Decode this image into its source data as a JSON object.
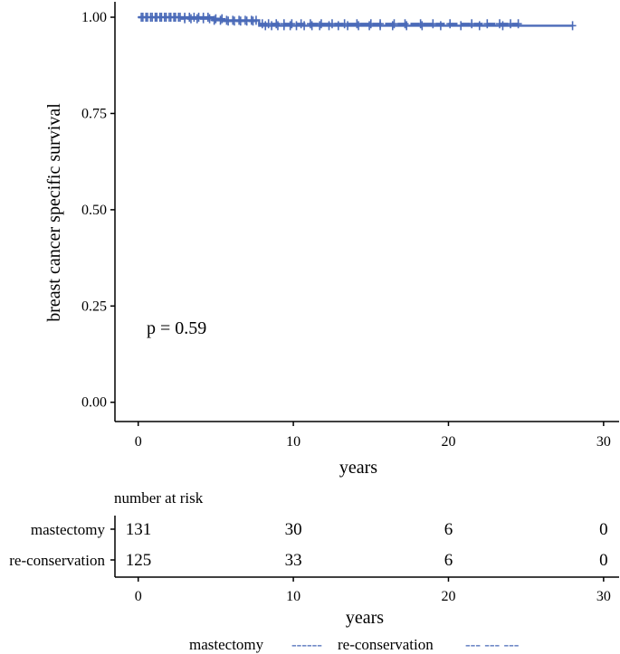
{
  "chart_data": {
    "type": "line",
    "subtype": "kaplan-meier",
    "title": "",
    "xlabel": "years",
    "ylabel": "breast cancer specific  survival",
    "xlim": [
      -1.5,
      31
    ],
    "ylim": [
      -0.05,
      1.04
    ],
    "x_ticks": [
      0,
      10,
      20,
      30
    ],
    "y_ticks": [
      0.0,
      0.25,
      0.5,
      0.75,
      1.0
    ],
    "y_tick_labels": [
      "0.00",
      "0.25",
      "0.50",
      "0.75",
      "1.00"
    ],
    "grid": false,
    "annotation": "p = 0.59",
    "color": "#4a6ab8",
    "series": [
      {
        "name": "mastectomy",
        "steps": [
          [
            0,
            1.0
          ],
          [
            4.8,
            0.992
          ],
          [
            7.8,
            0.978
          ],
          [
            28,
            0.978
          ]
        ],
        "censor_x": [
          0.3,
          0.6,
          0.9,
          1.2,
          1.5,
          1.8,
          2.1,
          2.4,
          2.7,
          3.0,
          3.3,
          3.6,
          3.9,
          4.2,
          4.5,
          4.9,
          5.3,
          5.7,
          6.1,
          6.5,
          6.9,
          7.3,
          7.6,
          8.2,
          8.6,
          9.0,
          9.4,
          9.8,
          10.2,
          10.7,
          11.2,
          11.7,
          12.3,
          12.9,
          13.5,
          14.2,
          14.9,
          15.6,
          16.4,
          17.3,
          18.3,
          19.5,
          20.8,
          22.0,
          23.5,
          28.0
        ]
      },
      {
        "name": "re-conservation",
        "steps": [
          [
            0,
            1.0
          ],
          [
            2.8,
            0.996
          ],
          [
            5.5,
            0.99
          ],
          [
            7.8,
            0.983
          ],
          [
            24.5,
            0.983
          ]
        ],
        "censor_x": [
          0.2,
          0.5,
          0.8,
          1.1,
          1.4,
          1.7,
          2.0,
          2.3,
          2.6,
          3.0,
          3.4,
          3.8,
          4.2,
          4.6,
          5.0,
          5.4,
          5.8,
          6.2,
          6.6,
          7.0,
          7.4,
          8.0,
          8.4,
          8.9,
          9.4,
          9.9,
          10.5,
          11.1,
          11.8,
          12.5,
          13.3,
          14.1,
          15.0,
          15.6,
          16.5,
          17.2,
          18.2,
          19.0,
          20.1,
          21.5,
          22.5,
          23.3,
          24.0,
          24.5
        ]
      }
    ],
    "risk_table": {
      "title": "number at risk",
      "x": [
        0,
        10,
        20,
        30
      ],
      "rows": [
        {
          "label": "mastectomy",
          "values": [
            "131",
            "30",
            "6",
            "0"
          ]
        },
        {
          "label": "re-conservation",
          "values": [
            "125",
            "33",
            "6",
            "0"
          ]
        }
      ],
      "xlabel": "years",
      "x_ticks": [
        0,
        10,
        20,
        30
      ]
    },
    "legend": {
      "placement": "bottom",
      "items": [
        {
          "label": "mastectomy",
          "dash": "------"
        },
        {
          "label": "re-conservation",
          "dash": "--- --- ---"
        }
      ]
    }
  }
}
